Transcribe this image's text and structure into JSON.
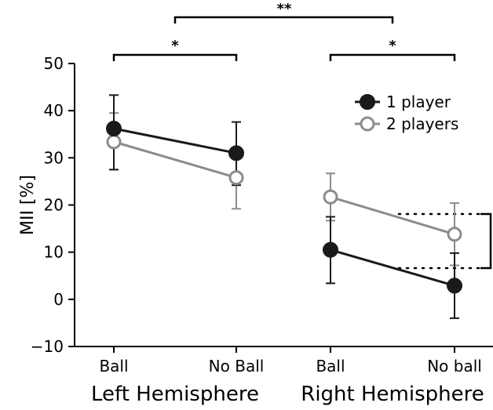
{
  "chart_data": {
    "type": "line",
    "ylabel": "MII [%]",
    "ylim": [
      -10,
      50
    ],
    "yticks": [
      -10,
      0,
      10,
      20,
      30,
      40,
      50
    ],
    "ytick_labels": [
      "−10",
      "0",
      "10",
      "20",
      "30",
      "40",
      "50"
    ],
    "groups": [
      {
        "name": "Left Hemisphere",
        "categories": [
          "Ball",
          "No Ball"
        ]
      },
      {
        "name": "Right Hemisphere",
        "categories": [
          "Ball",
          "No ball"
        ]
      }
    ],
    "series": [
      {
        "name": "1 player",
        "color": "#1a1a1a",
        "marker": "filled-circle",
        "groups": [
          {
            "values": [
              36.2,
              31.0
            ],
            "err_low": [
              27.5,
              24.2
            ],
            "err_high": [
              43.3,
              37.6
            ]
          },
          {
            "values": [
              10.5,
              2.9
            ],
            "err_low": [
              3.4,
              -4.0
            ],
            "err_high": [
              17.5,
              9.8
            ]
          }
        ]
      },
      {
        "name": "2 players",
        "color": "#8c8c8c",
        "marker": "open-circle",
        "groups": [
          {
            "values": [
              33.4,
              25.8
            ],
            "err_low": [
              27.5,
              19.2
            ],
            "err_high": [
              39.5,
              31.9
            ]
          },
          {
            "values": [
              21.7,
              13.8
            ],
            "err_low": [
              16.7,
              7.2
            ],
            "err_high": [
              26.7,
              20.4
            ]
          }
        ]
      }
    ],
    "legend_position": "top-right",
    "significance": [
      {
        "label": "*",
        "between": "Left Hemisphere Ball vs No Ball"
      },
      {
        "label": "*",
        "between": "Right Hemisphere Ball vs No ball"
      },
      {
        "label": "**",
        "between": "Left Hemisphere vs Right Hemisphere"
      }
    ],
    "grid": false
  }
}
